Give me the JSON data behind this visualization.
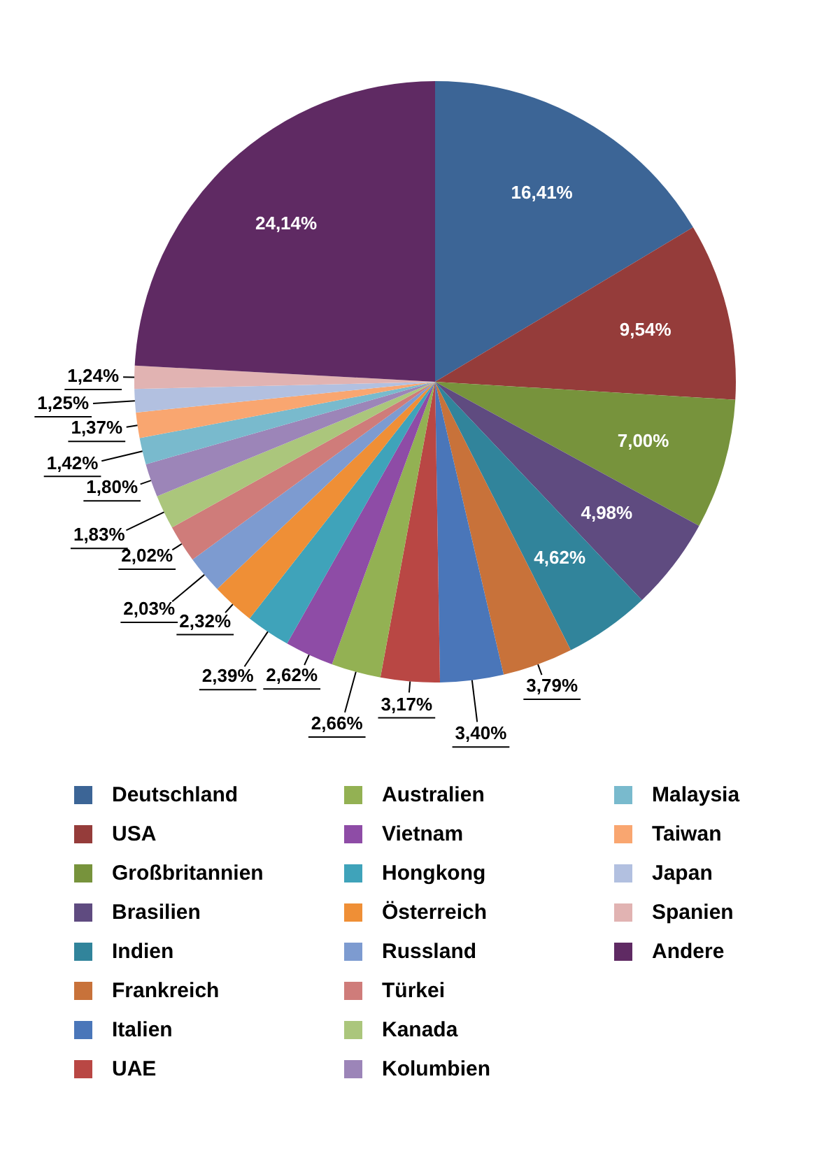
{
  "chart_data": {
    "type": "pie",
    "categories": [
      "Deutschland",
      "USA",
      "Großbritannien",
      "Brasilien",
      "Indien",
      "Frankreich",
      "Italien",
      "UAE",
      "Australien",
      "Vietnam",
      "Hongkong",
      "Österreich",
      "Russland",
      "Türkei",
      "Kanada",
      "Kolumbien",
      "Malaysia",
      "Taiwan",
      "Japan",
      "Spanien",
      "Andere"
    ],
    "values": [
      16.41,
      9.54,
      7.0,
      4.98,
      4.62,
      3.79,
      3.4,
      3.17,
      2.66,
      2.62,
      2.39,
      2.32,
      2.03,
      2.02,
      1.83,
      1.8,
      1.42,
      1.37,
      1.25,
      1.24,
      24.14
    ],
    "value_labels": [
      "16,41%",
      "9,54%",
      "7,00%",
      "4,98%",
      "4,62%",
      "3,79%",
      "3,40%",
      "3,17%",
      "2,66%",
      "2,62%",
      "2,39%",
      "2,32%",
      "2,03%",
      "2,02%",
      "1,83%",
      "1,80%",
      "1,42%",
      "1,37%",
      "1,25%",
      "1,24%",
      "24,14%"
    ],
    "colors": [
      "#3c6596",
      "#953c3a",
      "#77933c",
      "#5f4b80",
      "#31849b",
      "#c8723a",
      "#4a76b9",
      "#b94744",
      "#93b153",
      "#8e4ca6",
      "#3fa3ba",
      "#ef8f36",
      "#7d9bd0",
      "#cf7c7a",
      "#abc67c",
      "#9c85b8",
      "#79bacd",
      "#f9a670",
      "#b2c0e0",
      "#e1b3b2",
      "#5f2a63"
    ],
    "legend": "bottom"
  }
}
